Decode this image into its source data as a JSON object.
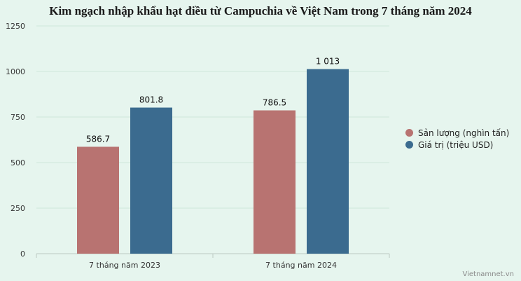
{
  "chart_data": {
    "type": "bar",
    "title": "Kim ngạch nhập khẩu hạt điều từ Campuchia về Việt Nam trong 7 tháng năm 2024",
    "categories": [
      "7 tháng năm 2023",
      "7 tháng năm 2024"
    ],
    "series": [
      {
        "name": "Sản lượng (nghìn tấn)",
        "values": [
          586.7,
          786.5
        ],
        "labels": [
          "586.7",
          "786.5"
        ],
        "color": "#b87371"
      },
      {
        "name": "Giá trị (triệu USD)",
        "values": [
          801.8,
          1013
        ],
        "labels": [
          "801.8",
          "1 013"
        ],
        "color": "#3b6b8f"
      }
    ],
    "y_ticks": [
      "0",
      "250",
      "500",
      "750",
      "1000",
      "1250"
    ],
    "ylim": [
      0,
      1250
    ],
    "grid": true,
    "legend_position": "right"
  },
  "watermark": "Vietnamnet.vn"
}
